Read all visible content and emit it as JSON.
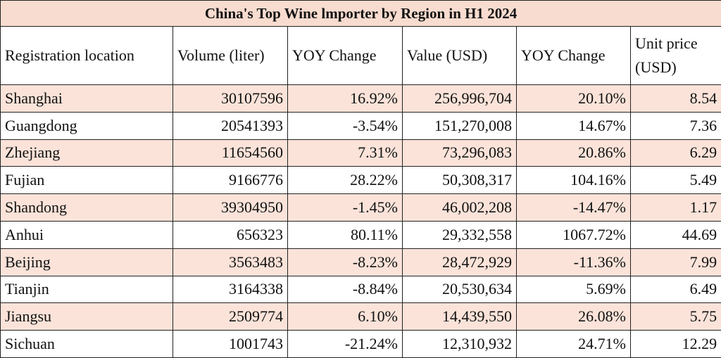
{
  "table": {
    "title": "China's Top Wine lmporter by Region in H1 2024",
    "header": [
      "Registration location",
      "Volume (liter)",
      "YOY Change",
      "Value (USD)",
      "YOY Change",
      "Unit price (USD)"
    ],
    "rows": [
      [
        "Shanghai",
        "30107596",
        "16.92%",
        "256,996,704",
        "20.10%",
        "8.54"
      ],
      [
        "Guangdong",
        "20541393",
        "-3.54%",
        "151,270,008",
        "14.67%",
        "7.36"
      ],
      [
        "Zhejiang",
        "11654560",
        "7.31%",
        "73,296,083",
        "20.86%",
        "6.29"
      ],
      [
        "Fujian",
        "9166776",
        "28.22%",
        "50,308,317",
        "104.16%",
        "5.49"
      ],
      [
        "Shandong",
        "39304950",
        "-1.45%",
        "46,002,208",
        "-14.47%",
        "1.17"
      ],
      [
        "Anhui",
        "656323",
        "80.11%",
        "29,332,558",
        "1067.72%",
        "44.69"
      ],
      [
        "Beijing",
        "3563483",
        "-8.23%",
        "28,472,929",
        "-11.36%",
        "7.99"
      ],
      [
        "Tianjin",
        "3164338",
        "-8.84%",
        "20,530,634",
        "5.69%",
        "6.49"
      ],
      [
        "Jiangsu",
        "2509774",
        "6.10%",
        "14,439,550",
        "26.08%",
        "5.75"
      ],
      [
        "Sichuan",
        "1001743",
        "-21.24%",
        "12,310,932",
        "24.71%",
        "12.29"
      ]
    ]
  }
}
